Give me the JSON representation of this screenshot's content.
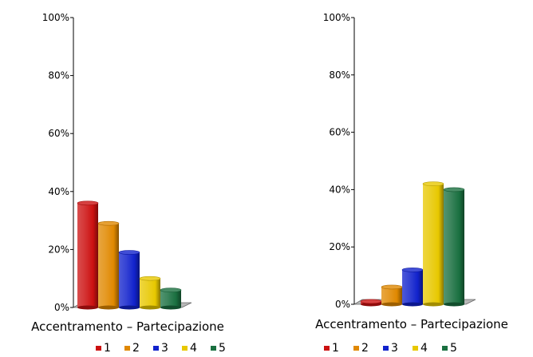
{
  "chart_data": [
    {
      "type": "bar",
      "xlabel": "Accentramento – Partecipazione",
      "ylabel": "",
      "ylim": [
        0,
        100
      ],
      "y_ticks": [
        "0%",
        "20%",
        "40%",
        "60%",
        "80%",
        "100%"
      ],
      "categories": [
        "1",
        "2",
        "3",
        "4",
        "5"
      ],
      "values": [
        36,
        29,
        19,
        10,
        6
      ],
      "colors": [
        "#cc1111",
        "#e08800",
        "#1122cc",
        "#e8c800",
        "#1a7040"
      ],
      "legend": [
        "1",
        "2",
        "3",
        "4",
        "5"
      ],
      "legend_position": "bottom",
      "grid": false
    },
    {
      "type": "bar",
      "xlabel": "Accentramento – Partecipazione",
      "ylabel": "",
      "ylim": [
        0,
        100
      ],
      "y_ticks": [
        "0%",
        "20%",
        "40%",
        "60%",
        "80%",
        "100%"
      ],
      "categories": [
        "1",
        "2",
        "3",
        "4",
        "5"
      ],
      "values": [
        1,
        6,
        12,
        42,
        40
      ],
      "colors": [
        "#cc1111",
        "#e08800",
        "#1122cc",
        "#e8c800",
        "#1a7040"
      ],
      "legend": [
        "1",
        "2",
        "3",
        "4",
        "5"
      ],
      "legend_position": "bottom",
      "grid": false
    }
  ]
}
